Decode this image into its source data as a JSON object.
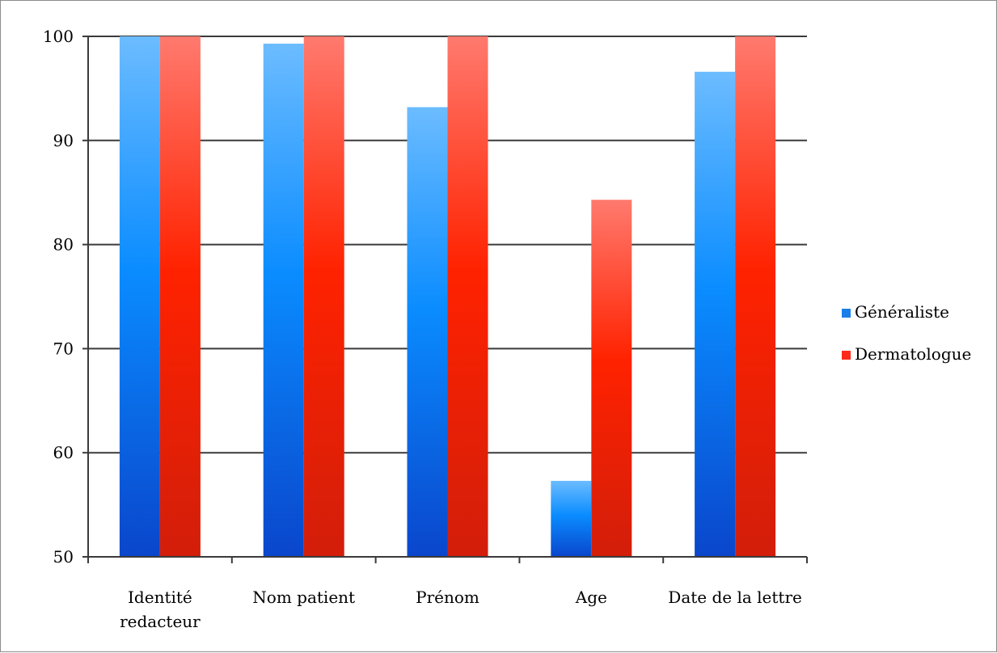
{
  "chart_data": {
    "type": "bar",
    "title": "",
    "xlabel": "",
    "ylabel": "",
    "ylim": [
      50,
      100
    ],
    "yticks": [
      50,
      60,
      70,
      80,
      90,
      100
    ],
    "grid": true,
    "legend_position": "right",
    "categories": [
      [
        "Identité",
        "redacteur"
      ],
      [
        "Nom patient"
      ],
      [
        "Prénom"
      ],
      [
        "Age"
      ],
      [
        "Date de la lettre"
      ]
    ],
    "series": [
      {
        "name": "Généraliste",
        "values": [
          100,
          99.3,
          93.2,
          57.3,
          96.6
        ],
        "color": "#1a7fe8"
      },
      {
        "name": "Dermatologue",
        "values": [
          100,
          100,
          100,
          84.3,
          100
        ],
        "color": "#ff2a1a"
      }
    ]
  }
}
